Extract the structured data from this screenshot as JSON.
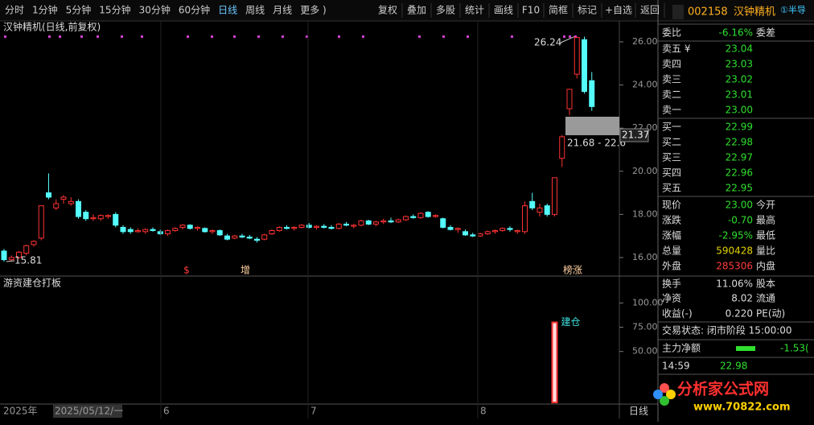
{
  "toolbar": {
    "left": [
      "分时",
      "1分钟",
      "5分钟",
      "15分钟",
      "30分钟",
      "60分钟",
      "日线",
      "周线",
      "月线",
      "更多 )"
    ],
    "right": [
      "复权",
      "叠加",
      "多股",
      "统计",
      "画线",
      "F10",
      "简框",
      "标记",
      "+自选",
      "返回"
    ]
  },
  "chart_data": {
    "type": "candlestick",
    "title": "汉钟精机(日线,前复权)",
    "ylim": [
      15.14,
      26.97
    ],
    "yticks": [
      {
        "value": 26,
        "label": "26.00"
      },
      {
        "value": 24,
        "label": "24.00"
      },
      {
        "value": 22,
        "label": "22.00"
      },
      {
        "value": 20,
        "label": "20.00"
      },
      {
        "value": 18,
        "label": "18.00"
      },
      {
        "value": 16,
        "label": "16.00"
      }
    ],
    "up_color": "#ff3232",
    "down_color": "#54fcfc",
    "ohlc": [
      [
        16.3,
        16.4,
        15.81,
        15.9
      ],
      [
        15.9,
        16.1,
        15.85,
        16.0
      ],
      [
        16.0,
        16.3,
        15.95,
        16.25
      ],
      [
        16.2,
        16.6,
        16.1,
        16.55
      ],
      [
        16.6,
        16.8,
        16.5,
        16.75
      ],
      [
        16.9,
        18.4,
        16.8,
        18.4
      ],
      [
        19.0,
        19.9,
        18.7,
        18.8
      ],
      [
        18.3,
        18.7,
        18.2,
        18.5
      ],
      [
        18.7,
        18.9,
        18.5,
        18.8
      ],
      [
        18.5,
        18.8,
        18.4,
        18.6
      ],
      [
        18.6,
        18.7,
        17.8,
        17.9
      ],
      [
        18.1,
        18.2,
        17.7,
        17.8
      ],
      [
        17.8,
        18.0,
        17.7,
        17.85
      ],
      [
        17.8,
        18.0,
        17.7,
        17.95
      ],
      [
        17.9,
        18.0,
        17.8,
        17.95
      ],
      [
        18.0,
        18.1,
        17.4,
        17.5
      ],
      [
        17.4,
        17.5,
        17.1,
        17.2
      ],
      [
        17.3,
        17.4,
        17.1,
        17.2
      ],
      [
        17.2,
        17.35,
        17.15,
        17.25
      ],
      [
        17.2,
        17.35,
        17.1,
        17.3
      ],
      [
        17.3,
        17.4,
        17.2,
        17.25
      ],
      [
        17.2,
        17.3,
        17.05,
        17.1
      ],
      [
        17.1,
        17.3,
        17.0,
        17.25
      ],
      [
        17.25,
        17.4,
        17.2,
        17.35
      ],
      [
        17.4,
        17.55,
        17.3,
        17.5
      ],
      [
        17.5,
        17.55,
        17.3,
        17.35
      ],
      [
        17.35,
        17.45,
        17.25,
        17.4
      ],
      [
        17.35,
        17.4,
        17.15,
        17.2
      ],
      [
        17.2,
        17.3,
        17.1,
        17.25
      ],
      [
        17.25,
        17.3,
        17.0,
        17.05
      ],
      [
        17.0,
        17.1,
        16.8,
        16.85
      ],
      [
        16.9,
        17.05,
        16.85,
        17.0
      ],
      [
        17.0,
        17.1,
        16.9,
        16.95
      ],
      [
        16.95,
        17.05,
        16.85,
        16.9
      ],
      [
        16.85,
        16.95,
        16.7,
        16.8
      ],
      [
        16.85,
        17.1,
        16.8,
        17.05
      ],
      [
        17.1,
        17.3,
        17.05,
        17.25
      ],
      [
        17.25,
        17.45,
        17.2,
        17.4
      ],
      [
        17.4,
        17.5,
        17.3,
        17.35
      ],
      [
        17.35,
        17.45,
        17.25,
        17.4
      ],
      [
        17.4,
        17.55,
        17.35,
        17.5
      ],
      [
        17.5,
        17.6,
        17.35,
        17.4
      ],
      [
        17.4,
        17.5,
        17.3,
        17.45
      ],
      [
        17.45,
        17.55,
        17.35,
        17.4
      ],
      [
        17.4,
        17.5,
        17.3,
        17.35
      ],
      [
        17.35,
        17.6,
        17.3,
        17.55
      ],
      [
        17.55,
        17.65,
        17.45,
        17.5
      ],
      [
        17.45,
        17.55,
        17.35,
        17.5
      ],
      [
        17.5,
        17.75,
        17.45,
        17.7
      ],
      [
        17.7,
        17.75,
        17.5,
        17.55
      ],
      [
        17.55,
        17.7,
        17.45,
        17.65
      ],
      [
        17.65,
        17.8,
        17.55,
        17.7
      ],
      [
        17.7,
        17.85,
        17.6,
        17.65
      ],
      [
        17.65,
        17.8,
        17.6,
        17.75
      ],
      [
        17.75,
        17.95,
        17.7,
        17.9
      ],
      [
        17.9,
        18.0,
        17.8,
        17.85
      ],
      [
        17.85,
        18.1,
        17.8,
        18.05
      ],
      [
        18.1,
        18.15,
        17.85,
        17.9
      ],
      [
        17.9,
        18.0,
        17.85,
        17.95
      ],
      [
        17.8,
        17.85,
        17.35,
        17.4
      ],
      [
        17.4,
        17.5,
        17.25,
        17.3
      ],
      [
        17.3,
        17.4,
        17.15,
        17.35
      ],
      [
        17.2,
        17.3,
        17.0,
        17.05
      ],
      [
        17.05,
        17.15,
        16.95,
        17.0
      ],
      [
        17.0,
        17.15,
        16.95,
        17.1
      ],
      [
        17.1,
        17.25,
        17.05,
        17.2
      ],
      [
        17.2,
        17.3,
        17.1,
        17.25
      ],
      [
        17.25,
        17.4,
        17.2,
        17.35
      ],
      [
        17.35,
        17.45,
        17.2,
        17.3
      ],
      [
        17.2,
        17.3,
        17.1,
        17.25
      ],
      [
        17.2,
        18.6,
        17.1,
        18.4
      ],
      [
        18.6,
        19.0,
        18.2,
        18.3
      ],
      [
        18.1,
        18.5,
        17.9,
        18.3
      ],
      [
        18.4,
        18.5,
        17.9,
        18.0
      ],
      [
        18.0,
        19.7,
        17.9,
        19.7
      ],
      [
        20.6,
        21.68,
        20.2,
        21.6
      ],
      [
        22.9,
        23.8,
        22.6,
        23.8
      ],
      [
        24.5,
        26.24,
        24.3,
        26.2
      ],
      [
        26.1,
        26.24,
        23.6,
        23.7
      ],
      [
        24.2,
        24.6,
        22.8,
        23.0
      ]
    ],
    "high_label": "26.24",
    "low_label": "15.81",
    "gap_label": "21.68 - 22.6",
    "cursor_price": "21.37",
    "markers": [
      "$",
      "增",
      "榜涨"
    ],
    "x_labels": [
      "2025年",
      "2025/05/12/一",
      "6",
      "7",
      "8"
    ],
    "period": "日线"
  },
  "indicator": {
    "title": "游资建仓打板",
    "ylim": [
      0,
      126
    ],
    "yticks": [
      {
        "value": 100,
        "label": "100.00"
      },
      {
        "value": 75,
        "label": "75.00"
      },
      {
        "value": 50,
        "label": "50.00"
      }
    ],
    "color": "#ff3232",
    "label": "建仓",
    "values": [
      null,
      null,
      null,
      null,
      null,
      null,
      null,
      null,
      null,
      null,
      null,
      null,
      null,
      null,
      null,
      null,
      null,
      null,
      null,
      null,
      null,
      null,
      null,
      null,
      null,
      null,
      null,
      null,
      null,
      null,
      null,
      null,
      null,
      null,
      null,
      null,
      null,
      null,
      null,
      null,
      null,
      null,
      null,
      null,
      null,
      null,
      null,
      null,
      null,
      null,
      null,
      null,
      null,
      null,
      null,
      null,
      null,
      null,
      null,
      null,
      null,
      null,
      null,
      null,
      null,
      null,
      null,
      null,
      null,
      null,
      null,
      null,
      null,
      null,
      80,
      null,
      null,
      null,
      null,
      null
    ]
  },
  "quote": {
    "code": "002158",
    "name": "汉钟精机",
    "tag": "①半导",
    "rows": [
      {
        "label": "委比",
        "value": "-6.16%",
        "label2": "委差",
        "color": "#2fe02f"
      },
      {
        "label": "卖五 ¥",
        "value": "23.04",
        "color": "#2fe02f"
      },
      {
        "label": "卖四",
        "value": "23.03",
        "color": "#2fe02f"
      },
      {
        "label": "卖三",
        "value": "23.02",
        "color": "#2fe02f"
      },
      {
        "label": "卖二",
        "value": "23.01",
        "color": "#2fe02f"
      },
      {
        "label": "卖一",
        "value": "23.00",
        "color": "#2fe02f"
      },
      {
        "label": "买一",
        "value": "22.99",
        "color": "#2fe02f"
      },
      {
        "label": "买二",
        "value": "22.98",
        "color": "#2fe02f"
      },
      {
        "label": "买三",
        "value": "22.97",
        "color": "#2fe02f"
      },
      {
        "label": "买四",
        "value": "22.96",
        "color": "#2fe02f"
      },
      {
        "label": "买五",
        "value": "22.95",
        "color": "#2fe02f"
      },
      {
        "label": "现价",
        "value": "23.00",
        "label2": "今开",
        "color": "#2fe02f"
      },
      {
        "label": "涨跌",
        "value": "-0.70",
        "label2": "最高",
        "color": "#2fe02f"
      },
      {
        "label": "涨幅",
        "value": "-2.95%",
        "label2": "最低",
        "color": "#2fe02f"
      },
      {
        "label": "总量",
        "value": "590428",
        "label2": "量比",
        "color": "#e6d400"
      },
      {
        "label": "外盘",
        "value": "285306",
        "label2": "内盘",
        "color": "#ff3c3c"
      },
      {
        "label": "换手",
        "value": "11.06%",
        "label2": "股本",
        "color": "#dddddd"
      },
      {
        "label": "净资",
        "value": "8.02",
        "label2": "流通",
        "color": "#dddddd"
      },
      {
        "label": "收益(-)",
        "value": "0.220",
        "label2": "PE(动)",
        "color": "#dddddd"
      }
    ],
    "status": "交易状态: 闭市阶段 15:00:00",
    "flow_label": "主力净额",
    "flow_value": "-1.53(",
    "tick_time": "14:59",
    "tick_price": "22.98"
  },
  "logo": {
    "name": "分析家公式网",
    "url": "www.70822.com"
  }
}
